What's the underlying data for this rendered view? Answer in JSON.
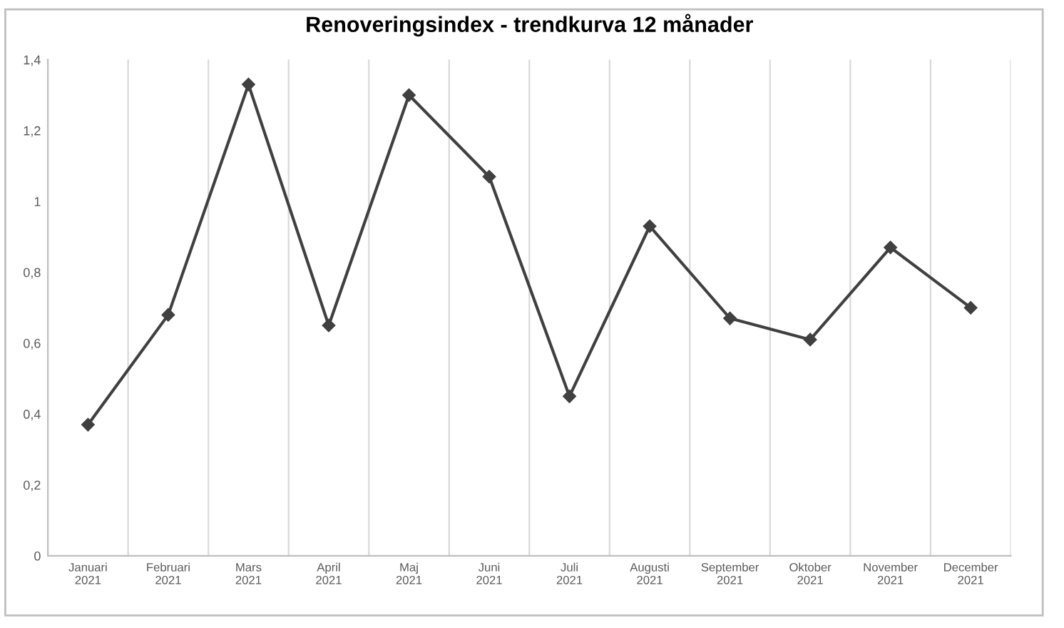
{
  "chart_data": {
    "type": "line",
    "title": "Renoveringsindex - trendkurva 12 månader",
    "categories": [
      "Januari\n2021",
      "Februari\n2021",
      "Mars\n2021",
      "April\n2021",
      "Maj\n2021",
      "Juni\n2021",
      "Juli\n2021",
      "Augusti\n2021",
      "September\n2021",
      "Oktober\n2021",
      "November\n2021",
      "December\n2021"
    ],
    "series": [
      {
        "color": "#404040",
        "values": [
          0.37,
          0.68,
          1.33,
          0.65,
          1.3,
          1.07,
          0.45,
          0.93,
          0.67,
          0.61,
          0.87,
          0.7
        ]
      }
    ],
    "ylim": [
      0,
      1.4
    ],
    "yticks": [
      0,
      {
        "value": 0.2,
        "label": "0,2"
      },
      {
        "value": 0.4,
        "label": "0,4"
      },
      {
        "value": 0.6,
        "label": "0,6"
      },
      {
        "value": 0.8,
        "label": "0,8"
      },
      1,
      {
        "value": 1.2,
        "label": "1,2"
      },
      {
        "value": 1.4,
        "label": "1,4"
      }
    ],
    "grid": "x",
    "marker": "diamond",
    "line_style": "solid",
    "legend": false
  }
}
